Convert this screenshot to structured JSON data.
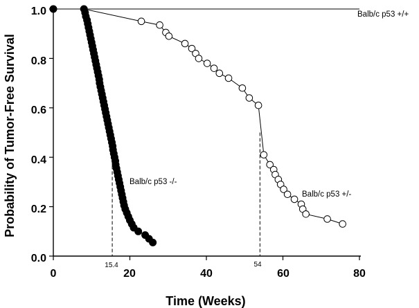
{
  "chart_data": {
    "type": "line",
    "title": "",
    "xlabel": "Time (Weeks)",
    "ylabel": "Probability of Tumor-Free Survival",
    "xlim": [
      0,
      80
    ],
    "ylim": [
      0.0,
      1.0
    ],
    "x_ticks": [
      "0",
      "20",
      "40",
      "60",
      "80"
    ],
    "y_ticks": [
      "0.0",
      "0.2",
      "0.4",
      "0.6",
      "0.8",
      "1.0"
    ],
    "x_tick_values": [
      0,
      20,
      40,
      60,
      80
    ],
    "y_tick_values": [
      0.0,
      0.2,
      0.4,
      0.6,
      0.8,
      1.0
    ],
    "median_markers": [
      {
        "label": "15.4",
        "x": 15.4,
        "y": 0.5
      },
      {
        "label": "54",
        "x": 54,
        "y": 0.5
      }
    ],
    "series": [
      {
        "name": "Balb/c p53 +/+",
        "marker": "none",
        "x": [
          0,
          80
        ],
        "y": [
          1.0,
          1.0
        ]
      },
      {
        "name": "Balb/c p53 -/-",
        "marker": "filled",
        "x": [
          0,
          8,
          8.3,
          8.5,
          8.8,
          9,
          9.2,
          9.4,
          9.6,
          9.8,
          10,
          10.2,
          10.4,
          10.6,
          10.8,
          11,
          11.2,
          11.4,
          11.6,
          11.8,
          12,
          12.1,
          12.3,
          12.5,
          12.7,
          12.9,
          13.1,
          13.3,
          13.5,
          13.7,
          13.9,
          14.1,
          14.3,
          14.5,
          14.7,
          14.9,
          15.1,
          15.3,
          15.5,
          15.6,
          15.8,
          16,
          16.2,
          16.3,
          16.5,
          16.7,
          16.9,
          17.1,
          17.3,
          17.5,
          17.7,
          17.9,
          18.1,
          18.3,
          18.5,
          18.8,
          19.2,
          19.6,
          20,
          20.5,
          21,
          22.2,
          24,
          25,
          26
        ],
        "y": [
          1.0,
          1.0,
          0.985,
          0.97,
          0.955,
          0.94,
          0.925,
          0.91,
          0.895,
          0.88,
          0.865,
          0.85,
          0.835,
          0.82,
          0.805,
          0.79,
          0.775,
          0.76,
          0.745,
          0.73,
          0.715,
          0.7,
          0.685,
          0.67,
          0.655,
          0.64,
          0.625,
          0.61,
          0.595,
          0.58,
          0.565,
          0.55,
          0.535,
          0.52,
          0.505,
          0.49,
          0.475,
          0.46,
          0.445,
          0.43,
          0.415,
          0.4,
          0.385,
          0.37,
          0.355,
          0.34,
          0.325,
          0.31,
          0.295,
          0.28,
          0.265,
          0.25,
          0.235,
          0.22,
          0.205,
          0.19,
          0.175,
          0.16,
          0.145,
          0.13,
          0.115,
          0.1,
          0.085,
          0.07,
          0.055
        ]
      },
      {
        "name": "Balb/c p53 +/-",
        "marker": "open",
        "x": [
          0,
          8,
          23,
          27.8,
          29.4,
          30.2,
          34.4,
          36.2,
          37.2,
          38,
          40.2,
          42,
          43.4,
          45.8,
          49.4,
          51.2,
          53.6,
          55,
          56.6,
          57.6,
          58,
          58.8,
          59.4,
          60.2,
          61.2,
          63,
          64.8,
          65.2,
          66,
          71.6,
          75.6
        ],
        "y": [
          1.0,
          1.0,
          0.95,
          0.935,
          0.905,
          0.89,
          0.86,
          0.84,
          0.82,
          0.8,
          0.78,
          0.76,
          0.74,
          0.72,
          0.68,
          0.64,
          0.61,
          0.41,
          0.37,
          0.35,
          0.33,
          0.31,
          0.29,
          0.27,
          0.25,
          0.23,
          0.21,
          0.19,
          0.17,
          0.15,
          0.13
        ]
      }
    ]
  }
}
